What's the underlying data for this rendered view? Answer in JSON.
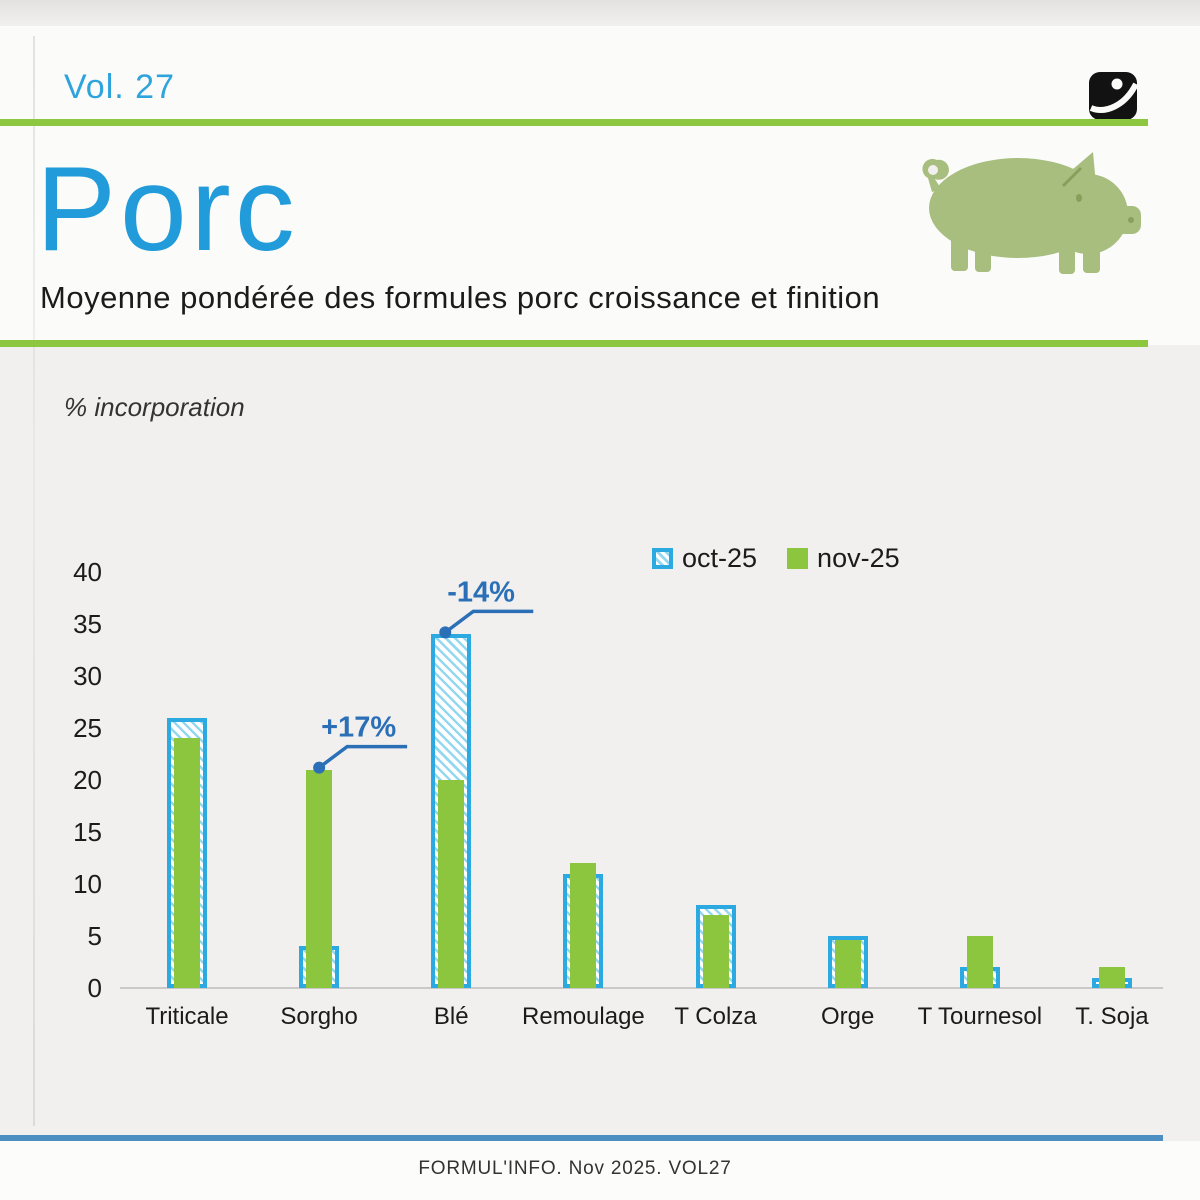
{
  "header": {
    "volume": "Vol. 27",
    "title": "Porc",
    "subtitle": "Moyenne pondérée des formules porc croissance et finition"
  },
  "axis_note": "% incorporation",
  "chart_data": {
    "type": "bar",
    "title": "",
    "xlabel": "",
    "ylabel": "% incorporation",
    "ylim": [
      0,
      40
    ],
    "yticks": [
      0,
      5,
      10,
      15,
      20,
      25,
      30,
      35,
      40
    ],
    "grid": false,
    "legend_position": "top-right",
    "categories": [
      "Triticale",
      "Sorgho",
      "Blé",
      "Remoulage",
      "T Colza",
      "Orge",
      "T Tournesol",
      "T. Soja"
    ],
    "series": [
      {
        "name": "oct-25",
        "values": [
          26,
          4,
          34,
          11,
          8,
          5,
          2,
          1
        ]
      },
      {
        "name": "nov-25",
        "values": [
          24,
          21,
          20,
          12,
          7,
          5,
          5,
          2
        ]
      }
    ],
    "annotations": [
      {
        "category": "Sorgho",
        "series": "nov-25",
        "label": "+17%"
      },
      {
        "category": "Blé",
        "series": "oct-25",
        "label": "-14%"
      }
    ]
  },
  "footer": {
    "text": "FORMUL'INFO. Nov 2025. VOL27"
  },
  "colors": {
    "oct_blue": "#2ba9e0",
    "oct_hatch": "#94d7f0",
    "nov_green": "#8cc63f",
    "title_blue": "#219bd9",
    "rule_green": "#8dc63f",
    "annotation_blue": "#2b6fb7",
    "footer_line_blue": "#4d8fc2",
    "pig_green": "#a7be7e",
    "logo_black": "#121212"
  },
  "icons": {
    "logo": "brand-swoosh-logo",
    "pig": "pig-silhouette"
  }
}
